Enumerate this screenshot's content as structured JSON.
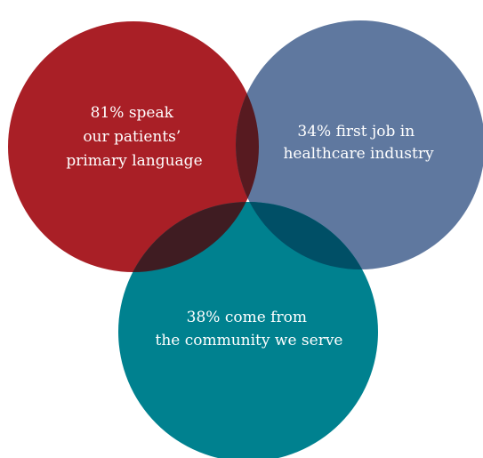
{
  "venn": {
    "circles": [
      {
        "id": "language",
        "color": "#a91f26",
        "lines": [
          "81% speak",
          "our patients’",
          "primary language"
        ]
      },
      {
        "id": "first-job",
        "color": "#5f789f",
        "lines": [
          "34% first job in",
          "healthcare industry"
        ]
      },
      {
        "id": "community",
        "color": "#00818f",
        "lines": [
          "38% come from",
          "the community we serve"
        ]
      }
    ],
    "overlap_colors": {
      "language_first_job": "#571a20",
      "language_community": "#3f1c22",
      "first_job_community": "#004f66",
      "all_three": "#3f1c22"
    }
  }
}
